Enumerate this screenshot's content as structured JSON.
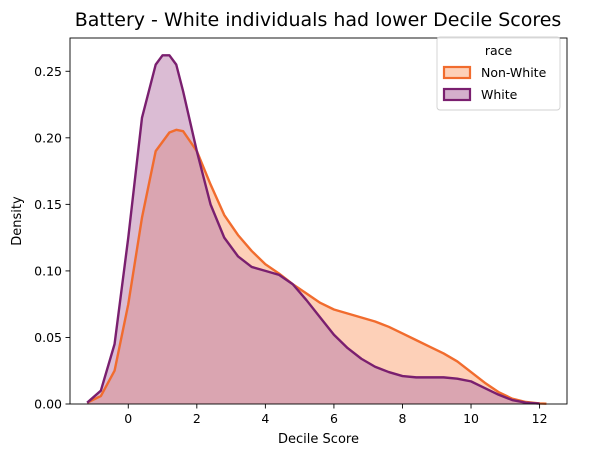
{
  "chart_data": {
    "type": "area",
    "title": "Battery - White individuals had lower Decile Scores",
    "xlabel": "Decile Score",
    "ylabel": "Density",
    "xlim": [
      -1.7,
      12.8
    ],
    "ylim": [
      0,
      0.275
    ],
    "xticks": [
      0,
      2,
      4,
      6,
      8,
      10,
      12
    ],
    "yticks": [
      0.0,
      0.05,
      0.1,
      0.15,
      0.2,
      0.25
    ],
    "xtick_labels": [
      "0",
      "2",
      "4",
      "6",
      "8",
      "10",
      "12"
    ],
    "ytick_labels": [
      "0.00",
      "0.05",
      "0.10",
      "0.15",
      "0.20",
      "0.25"
    ],
    "grid": false,
    "legend": {
      "title": "race",
      "placement": "top-right",
      "entries": [
        "Non-White",
        "White"
      ]
    },
    "series": [
      {
        "name": "Non-White",
        "color": "#f16c2e",
        "fill": "#fbb089",
        "x": [
          -1.2,
          -0.8,
          -0.4,
          0.0,
          0.4,
          0.8,
          1.2,
          1.4,
          1.6,
          2.0,
          2.4,
          2.8,
          3.2,
          3.6,
          4.0,
          4.4,
          4.8,
          5.2,
          5.6,
          6.0,
          6.4,
          6.8,
          7.2,
          7.6,
          8.0,
          8.4,
          8.8,
          9.2,
          9.6,
          10.0,
          10.4,
          10.8,
          11.2,
          11.6,
          12.0,
          12.2
        ],
        "y": [
          0.001,
          0.006,
          0.025,
          0.075,
          0.14,
          0.19,
          0.204,
          0.206,
          0.205,
          0.19,
          0.165,
          0.142,
          0.127,
          0.115,
          0.105,
          0.098,
          0.09,
          0.083,
          0.076,
          0.071,
          0.068,
          0.065,
          0.062,
          0.058,
          0.053,
          0.048,
          0.043,
          0.038,
          0.032,
          0.024,
          0.016,
          0.009,
          0.004,
          0.0015,
          0.0004,
          0.0002
        ]
      },
      {
        "name": "White",
        "color": "#7a1f6f",
        "fill": "#b87aaa",
        "x": [
          -1.2,
          -0.8,
          -0.4,
          0.0,
          0.4,
          0.8,
          1.0,
          1.2,
          1.4,
          1.6,
          2.0,
          2.4,
          2.8,
          3.2,
          3.6,
          4.0,
          4.4,
          4.8,
          5.2,
          5.6,
          6.0,
          6.4,
          6.8,
          7.2,
          7.6,
          8.0,
          8.4,
          8.8,
          9.2,
          9.6,
          10.0,
          10.4,
          10.8,
          11.2,
          11.6,
          12.0
        ],
        "y": [
          0.001,
          0.01,
          0.045,
          0.125,
          0.215,
          0.255,
          0.262,
          0.262,
          0.255,
          0.235,
          0.19,
          0.15,
          0.125,
          0.111,
          0.103,
          0.1,
          0.097,
          0.09,
          0.078,
          0.065,
          0.052,
          0.042,
          0.034,
          0.028,
          0.024,
          0.021,
          0.02,
          0.02,
          0.02,
          0.019,
          0.017,
          0.012,
          0.007,
          0.003,
          0.001,
          0.0003
        ]
      }
    ]
  }
}
